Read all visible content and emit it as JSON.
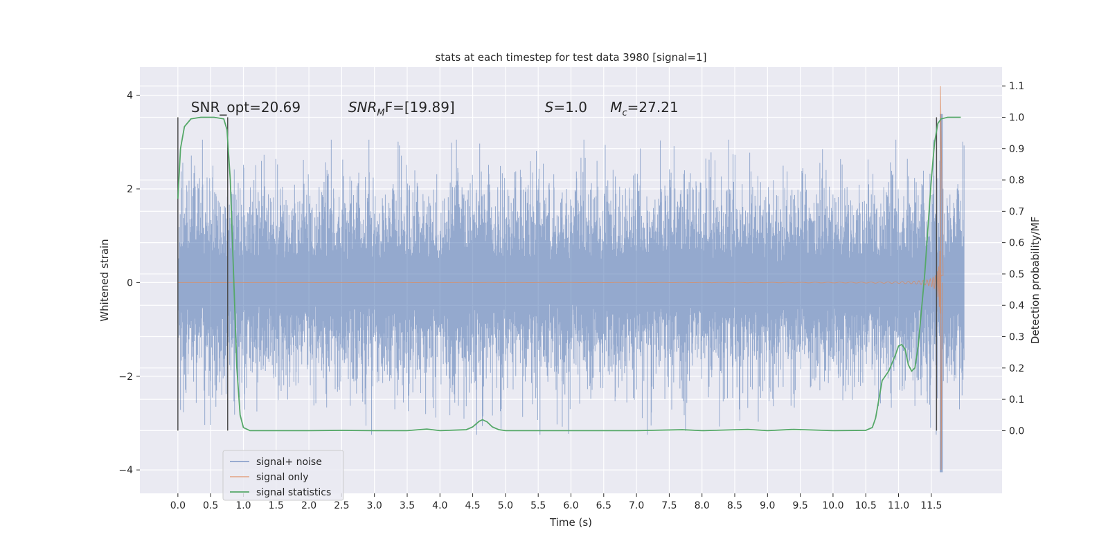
{
  "chart_data": {
    "type": "line",
    "title": "stats at each timestep for test data 3980 [signal=1]",
    "xlabel": "Time (s)",
    "ylabel_left": "Whitened strain",
    "ylabel_right": "Detection probability/MF",
    "xlim": [
      -0.58,
      12.58
    ],
    "ylim_left": [
      -4.5,
      4.6
    ],
    "ylim_right": [
      -0.2,
      1.16
    ],
    "x_ticks": [
      0.0,
      0.5,
      1.0,
      1.5,
      2.0,
      2.5,
      3.0,
      3.5,
      4.0,
      4.5,
      5.0,
      5.5,
      6.0,
      6.5,
      7.0,
      7.5,
      8.0,
      8.5,
      9.0,
      9.5,
      10.0,
      10.5,
      11.0,
      11.5
    ],
    "x_tick_labels": [
      "0.0",
      "0.5",
      "1.0",
      "1.5",
      "2.0",
      "2.5",
      "3.0",
      "3.5",
      "4.0",
      "4.5",
      "5.0",
      "5.5",
      "6.0",
      "6.5",
      "7.0",
      "7.5",
      "8.0",
      "8.5",
      "9.0",
      "9.5",
      "10.0",
      "10.5",
      "11.0",
      "11.5"
    ],
    "y_left_ticks": [
      -4,
      -2,
      0,
      2,
      4
    ],
    "y_left_tick_labels": [
      "−4",
      "−2",
      "0",
      "2",
      "4"
    ],
    "y_right_ticks": [
      0.0,
      0.1,
      0.2,
      0.3,
      0.4,
      0.5,
      0.6,
      0.7,
      0.8,
      0.9,
      1.0,
      1.1
    ],
    "y_right_tick_labels": [
      "0.0",
      "0.1",
      "0.2",
      "0.3",
      "0.4",
      "0.5",
      "0.6",
      "0.7",
      "0.8",
      "0.9",
      "1.0",
      "1.1"
    ],
    "grid": true,
    "legend_position": "lower-left",
    "series": [
      {
        "name": "signal+ noise",
        "color": "#4c72b0",
        "axis": "left",
        "t_start": 0.0,
        "t_end": 12.0,
        "description_values": "noise envelope roughly within -2.8 to 3.0, spike near 11.65"
      },
      {
        "name": "signal only",
        "color": "#dd8452",
        "axis": "left",
        "chirp_peak_time": 11.65,
        "chirp_peak_amplitude": 4.2
      },
      {
        "name": "signal statistics",
        "color": "#55a868",
        "axis": "right",
        "points": [
          [
            0.0,
            0.74
          ],
          [
            0.04,
            0.9
          ],
          [
            0.1,
            0.97
          ],
          [
            0.2,
            0.995
          ],
          [
            0.35,
            1.0
          ],
          [
            0.55,
            1.0
          ],
          [
            0.7,
            0.995
          ],
          [
            0.75,
            0.96
          ],
          [
            0.8,
            0.8
          ],
          [
            0.85,
            0.5
          ],
          [
            0.9,
            0.2
          ],
          [
            0.95,
            0.05
          ],
          [
            1.0,
            0.01
          ],
          [
            1.1,
            0.0
          ],
          [
            2.0,
            0.0
          ],
          [
            2.5,
            0.001
          ],
          [
            3.0,
            0.0
          ],
          [
            3.5,
            0.0
          ],
          [
            3.8,
            0.005
          ],
          [
            4.0,
            0.0
          ],
          [
            4.4,
            0.003
          ],
          [
            4.5,
            0.012
          ],
          [
            4.6,
            0.03
          ],
          [
            4.65,
            0.035
          ],
          [
            4.72,
            0.028
          ],
          [
            4.8,
            0.012
          ],
          [
            4.9,
            0.003
          ],
          [
            5.0,
            0.0
          ],
          [
            6.0,
            0.0
          ],
          [
            7.0,
            0.0
          ],
          [
            7.7,
            0.003
          ],
          [
            8.0,
            0.0
          ],
          [
            8.7,
            0.004
          ],
          [
            9.0,
            0.0
          ],
          [
            9.4,
            0.004
          ],
          [
            10.0,
            0.0
          ],
          [
            10.5,
            0.001
          ],
          [
            10.6,
            0.01
          ],
          [
            10.65,
            0.04
          ],
          [
            10.7,
            0.1
          ],
          [
            10.75,
            0.16
          ],
          [
            10.85,
            0.19
          ],
          [
            10.95,
            0.24
          ],
          [
            11.0,
            0.27
          ],
          [
            11.05,
            0.275
          ],
          [
            11.1,
            0.26
          ],
          [
            11.15,
            0.21
          ],
          [
            11.2,
            0.19
          ],
          [
            11.25,
            0.2
          ],
          [
            11.3,
            0.27
          ],
          [
            11.4,
            0.5
          ],
          [
            11.5,
            0.8
          ],
          [
            11.55,
            0.92
          ],
          [
            11.6,
            0.98
          ],
          [
            11.65,
            0.995
          ],
          [
            11.75,
            1.0
          ],
          [
            11.95,
            1.0
          ]
        ]
      }
    ],
    "vertical_markers": [
      0.0,
      0.76,
      11.58
    ],
    "annotations": [
      {
        "text": "SNR_opt=20.69",
        "x": 0.2,
        "y_right": 1.017
      },
      {
        "text_math": {
          "base": "SNR",
          "sub": "M",
          "rest": "F=[19.89]"
        },
        "x": 2.6,
        "y_right": 1.017
      },
      {
        "text_math": {
          "base": "S",
          "sub": "",
          "rest": "=1.0"
        },
        "x": 5.6,
        "y_right": 1.017
      },
      {
        "text_math": {
          "base": "M",
          "sub": "c",
          "rest": "=27.21"
        },
        "x": 6.6,
        "y_right": 1.017
      }
    ]
  }
}
